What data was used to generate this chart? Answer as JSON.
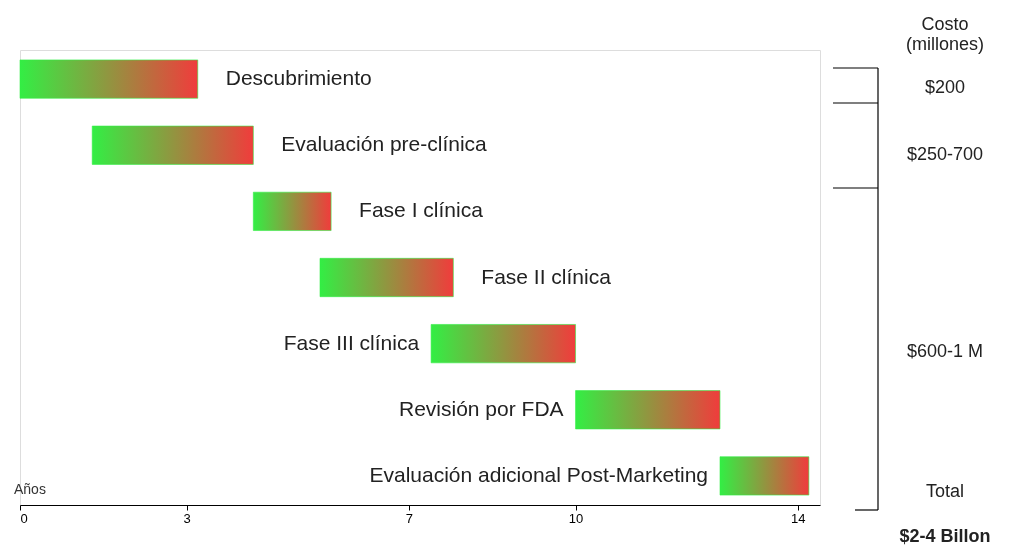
{
  "chart_data": {
    "type": "bar",
    "orientation": "horizontal",
    "xlabel": "Años",
    "categories": [
      "Descubrimiento",
      "Evaluación pre-clínica",
      "Fase I clínica",
      "Fase II clínica",
      "Fase III clínica",
      "Revisión por FDA",
      "Evaluación adicional Post-Marketing"
    ],
    "series": [
      {
        "color": "#33ee44",
        "base": [
          0,
          1.3,
          4.2,
          5.4,
          7.4,
          10,
          12.6
        ],
        "values": [
          3.2,
          2.9,
          1.4,
          2.4,
          2.6,
          2.6,
          1.6
        ]
      }
    ],
    "xlim": [
      0,
      14.4
    ],
    "xticks": [
      0,
      3,
      7,
      10,
      14
    ],
    "tick_labels": "x",
    "grid": false,
    "annotations": [
      "Costo\n(millones)",
      "$200",
      "$250-700",
      "$600-1 M",
      "Total",
      "$2-4 Billon"
    ]
  }
}
